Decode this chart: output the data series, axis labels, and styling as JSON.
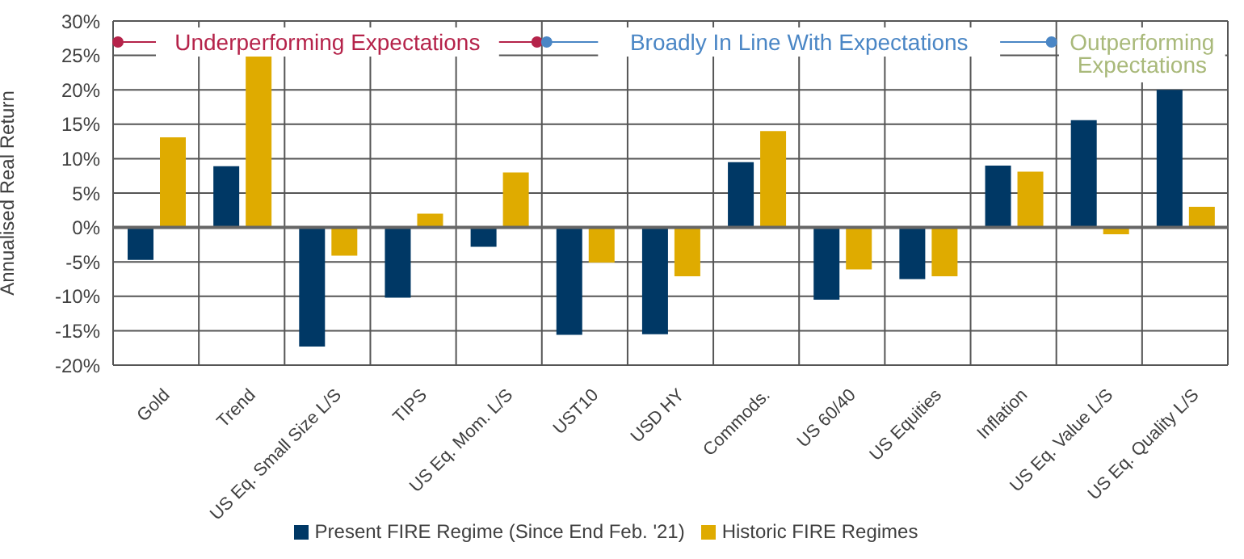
{
  "chart_data": {
    "type": "bar",
    "ylabel": "Annualised Real Return",
    "categories": [
      "Gold",
      "Trend",
      "US Eq. Small Size L/S",
      "TIPS",
      "US Eq. Mom. L/S",
      "UST10",
      "USD HY",
      "Commods.",
      "US 60/40",
      "US Equities",
      "Inflation",
      "US Eq. Value L/S",
      "US Eq. Quality L/S"
    ],
    "series": [
      {
        "name": "Present FIRE Regime (Since End Feb. '21)",
        "color": "#003865",
        "values": [
          -4.7,
          8.9,
          -17.3,
          -10.2,
          -2.8,
          -15.6,
          -15.5,
          9.5,
          -10.5,
          -7.5,
          9.0,
          15.6,
          20.0
        ]
      },
      {
        "name": "Historic FIRE Regimes",
        "color": "#dfab00",
        "values": [
          13.1,
          25,
          -4.1,
          2.0,
          8.0,
          -5.1,
          -7.1,
          14.0,
          -6.1,
          -7.1,
          8.1,
          -1.0,
          3.0
        ]
      }
    ],
    "ylim": [
      -20,
      30
    ],
    "yticks": [
      {
        "value": -20,
        "label": "-20%"
      },
      {
        "value": -15,
        "label": "-15%"
      },
      {
        "value": -10,
        "label": "-10%"
      },
      {
        "value": -5,
        "label": "-5%"
      },
      {
        "value": 0,
        "label": "0%"
      },
      {
        "value": 5,
        "label": "5%"
      },
      {
        "value": 10,
        "label": "10%"
      },
      {
        "value": 15,
        "label": "15%"
      },
      {
        "value": 20,
        "label": "20%"
      },
      {
        "value": 25,
        "label": "25%"
      },
      {
        "value": 30,
        "label": "30%"
      }
    ],
    "grid": true,
    "legend": "bottom",
    "annotations": [
      "Underperforming Expectations",
      "Broadly In Line With Expectations",
      "Outperforming Expectations"
    ]
  }
}
